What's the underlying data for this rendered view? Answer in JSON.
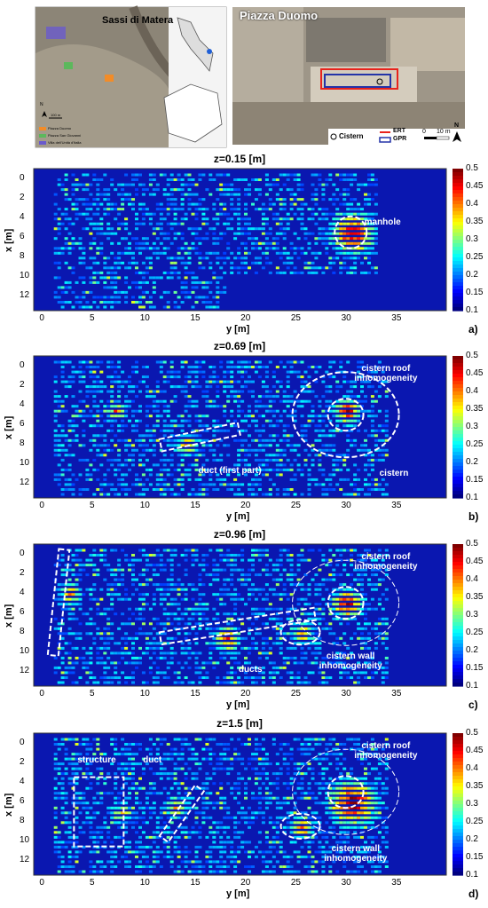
{
  "map": {
    "left_title": "Sassi di Matera",
    "right_title": "Piazza Duomo",
    "legend": [
      "Piazza Duomo",
      "Piazza San Giovanni",
      "Villa dell'Unità d'Italia"
    ],
    "scale_left": "100 m",
    "cistern_label": "Cistern",
    "ert_label": "ERT",
    "gpr_label": "GPR",
    "scale_right": "10 m",
    "scale_zero": "0",
    "north": "N",
    "colors": {
      "duomo": "#f28c28",
      "sangiovanni": "#5cb85c",
      "villa": "#6a5acd",
      "ert": "#e8231c",
      "gpr": "#2433a8"
    }
  },
  "panels": [
    {
      "title": "z=0.15 [m]",
      "label": "a)",
      "annotations": [
        "manhole"
      ]
    },
    {
      "title": "z=0.69 [m]",
      "label": "b)",
      "annotations": [
        "cistern roof\ninhomogeneity",
        "duct (first part)",
        "cistern"
      ]
    },
    {
      "title": "z=0.96 [m]",
      "label": "c)",
      "annotations": [
        "duct",
        "cistern roof\ninhomogeneity",
        "ducts",
        "cistern wall\ninhomogeneity"
      ]
    },
    {
      "title": "z=1.5  [m]",
      "label": "d)",
      "annotations": [
        "structure",
        "duct",
        "cistern roof\ninhomogeneity",
        "cistern wall\ninhomogeneity"
      ]
    }
  ],
  "axes": {
    "xlabel": "y [m]",
    "ylabel": "x [m]",
    "xticks": [
      "0",
      "5",
      "10",
      "15",
      "20",
      "25",
      "30",
      "35"
    ],
    "yticks": [
      "0",
      "2",
      "4",
      "6",
      "8",
      "10",
      "12"
    ],
    "colorbar_ticks": [
      "0.5",
      "0.45",
      "0.4",
      "0.35",
      "0.3",
      "0.25",
      "0.2",
      "0.15",
      "0.1"
    ]
  },
  "chart_data": [
    {
      "type": "heatmap",
      "title": "z=0.15 [m]",
      "xlabel": "y [m]",
      "ylabel": "x [m]",
      "xlim": [
        -1,
        40
      ],
      "ylim": [
        13.5,
        -1
      ],
      "clim": [
        0.1,
        0.5
      ],
      "features": [
        {
          "name": "manhole",
          "y": 30.5,
          "x": 5.5
        }
      ]
    },
    {
      "type": "heatmap",
      "title": "z=0.69 [m]",
      "xlabel": "y [m]",
      "ylabel": "x [m]",
      "xlim": [
        -1,
        40
      ],
      "ylim": [
        13.5,
        -1
      ],
      "clim": [
        0.1,
        0.5
      ],
      "features": [
        {
          "name": "cistern",
          "y": 30,
          "x": 5
        },
        {
          "name": "duct (first part)",
          "y": 14,
          "x": 8
        }
      ]
    },
    {
      "type": "heatmap",
      "title": "z=0.96 [m]",
      "xlabel": "y [m]",
      "ylabel": "x [m]",
      "xlim": [
        -1,
        40
      ],
      "ylim": [
        13.5,
        -1
      ],
      "clim": [
        0.1,
        0.5
      ],
      "features": [
        {
          "name": "duct",
          "y": 2.5,
          "x": 6
        },
        {
          "name": "ducts",
          "y": 18,
          "x": 8
        }
      ]
    },
    {
      "type": "heatmap",
      "title": "z=1.5  [m]",
      "xlabel": "y [m]",
      "ylabel": "x [m]",
      "xlim": [
        -1,
        40
      ],
      "ylim": [
        13.5,
        -1
      ],
      "clim": [
        0.1,
        0.5
      ],
      "features": [
        {
          "name": "structure",
          "y": 5.5,
          "x": 7.5
        },
        {
          "name": "duct",
          "y": 12.5,
          "x": 7
        }
      ]
    }
  ]
}
